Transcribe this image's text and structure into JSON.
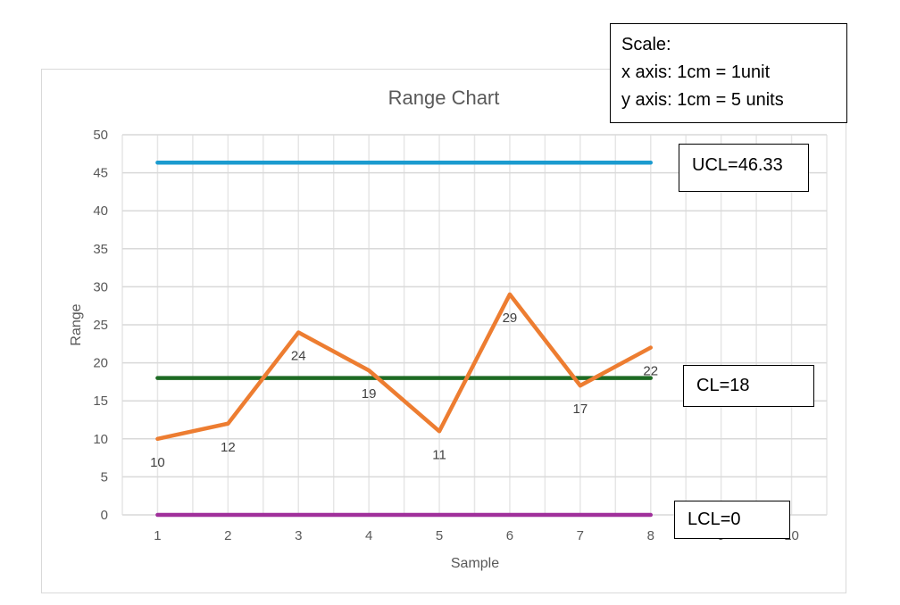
{
  "chart_data": {
    "type": "line",
    "title": "Range Chart",
    "xlabel": "Sample",
    "ylabel": "Range",
    "x_ticks": [
      1,
      2,
      3,
      4,
      5,
      6,
      7,
      8,
      9,
      10
    ],
    "y_ticks": [
      0,
      5,
      10,
      15,
      20,
      25,
      30,
      35,
      40,
      45,
      50
    ],
    "xlim": [
      0.5,
      10.5
    ],
    "ylim": [
      0,
      50
    ],
    "grid": true,
    "series": [
      {
        "x": [
          1,
          2,
          3,
          4,
          5,
          6,
          7,
          8
        ],
        "values": [
          10,
          12,
          24,
          19,
          11,
          29,
          17,
          22
        ],
        "color": "#ed7d31",
        "data_labels": true
      },
      {
        "x": [
          1,
          8
        ],
        "values": [
          46.33,
          46.33
        ],
        "color": "#1b9bcf"
      },
      {
        "x": [
          1,
          8
        ],
        "values": [
          18,
          18
        ],
        "color": "#1e6b24"
      },
      {
        "x": [
          1,
          8
        ],
        "values": [
          0,
          0
        ],
        "color": "#a0309b"
      }
    ]
  },
  "annotations": {
    "scale_title": "Scale:",
    "scale_x": "x axis: 1cm = 1unit",
    "scale_y": "y axis: 1cm = 5 units",
    "ucl": "UCL=46.33",
    "cl": "CL=18",
    "lcl": "LCL=0"
  }
}
